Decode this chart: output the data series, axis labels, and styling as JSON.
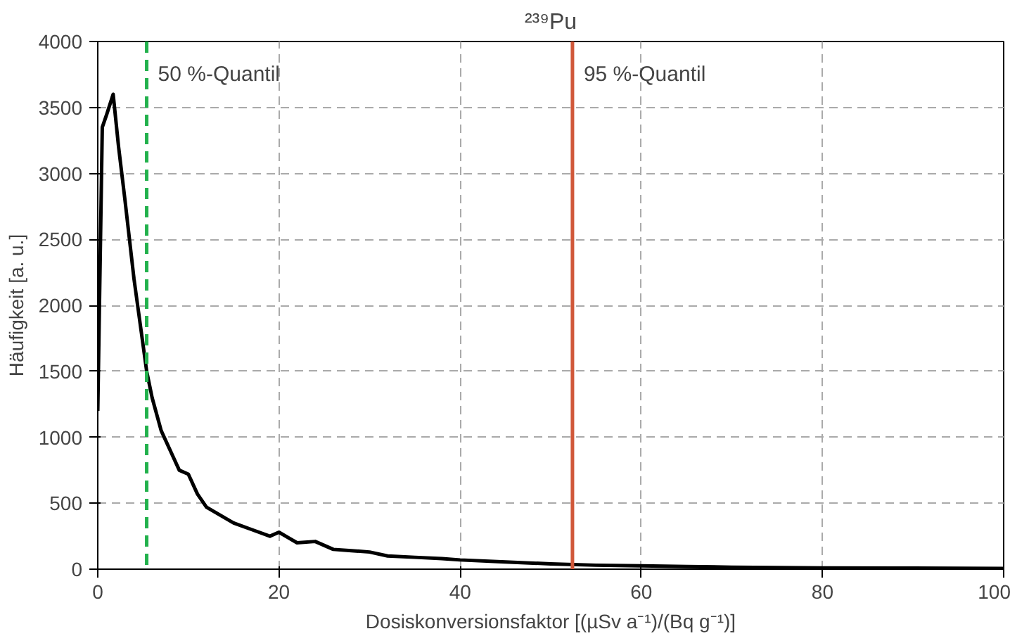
{
  "chart_data": {
    "type": "line",
    "title": "²³⁹Pu",
    "xlabel": "Dosiskonversionsfaktor [(µSv a⁻¹)/(Bq g⁻¹)]",
    "ylabel": "Häufigkeit [a. u.]",
    "series": [
      {
        "color": "#000000",
        "x": [
          0,
          0.5,
          1,
          1.7,
          2.3,
          3,
          4,
          5,
          5.4,
          6,
          7,
          8,
          9,
          10,
          11,
          12,
          13,
          15,
          17,
          19,
          20,
          22,
          24,
          26,
          28,
          30,
          32,
          35,
          38,
          40,
          45,
          50,
          55,
          60,
          65,
          70,
          80,
          90,
          100
        ],
        "values": [
          1200,
          3350,
          3450,
          3600,
          3200,
          2800,
          2200,
          1700,
          1500,
          1300,
          1050,
          900,
          750,
          720,
          570,
          470,
          430,
          350,
          300,
          250,
          280,
          200,
          210,
          150,
          140,
          130,
          100,
          90,
          80,
          70,
          55,
          40,
          30,
          25,
          20,
          15,
          10,
          8,
          5
        ]
      }
    ],
    "xlim": [
      0,
      100
    ],
    "ylim": [
      0,
      4000
    ],
    "xticks": [
      0,
      20,
      40,
      60,
      80,
      100
    ],
    "yticks": [
      0,
      500,
      1000,
      1500,
      2000,
      2500,
      3000,
      3500,
      4000
    ],
    "grid": true,
    "line_style": "solid",
    "marker": "none",
    "ref_lines": [
      {
        "axis": "x",
        "value": 5.4,
        "label": "50 %-Quantil",
        "color": "#22b14c",
        "line_style": "dashed"
      },
      {
        "axis": "x",
        "value": 52.4,
        "label": "95 %-Quantil",
        "color": "#d0583a",
        "line_style": "solid"
      }
    ]
  }
}
